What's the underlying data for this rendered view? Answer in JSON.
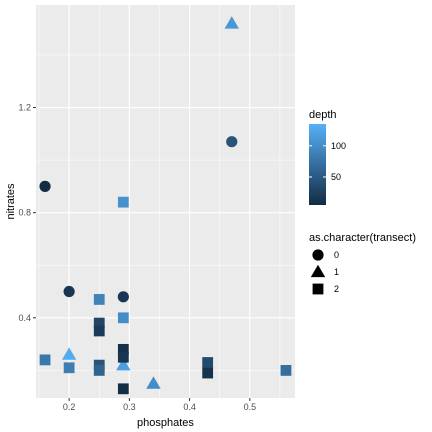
{
  "chart_data": {
    "type": "scatter",
    "xlabel": "phosphates",
    "ylabel": "nitrates",
    "xlim": [
      0.145,
      0.575
    ],
    "ylim": [
      0.095,
      1.59
    ],
    "x_ticks": [
      0.2,
      0.3,
      0.4,
      0.5
    ],
    "x_tick_labels": [
      "0.2",
      "0.3",
      "0.4",
      "0.5"
    ],
    "y_ticks": [
      0.4,
      0.8,
      1.2
    ],
    "y_tick_labels": [
      "0.4",
      "0.8",
      "1.2"
    ],
    "grid": true,
    "panel_background": "#ebebeb",
    "grid_color": "#ffffff",
    "legend": {
      "position": "right",
      "color": {
        "title": "depth",
        "range": [
          5,
          135
        ],
        "ticks": [
          50,
          100
        ],
        "tick_labels": [
          "50",
          "100"
        ],
        "low_color": "#132B43",
        "high_color": "#56B1F7"
      },
      "shape": {
        "title": "as.character(transect)",
        "entries": [
          {
            "label": "0",
            "shape": "circle"
          },
          {
            "label": "1",
            "shape": "triangle"
          },
          {
            "label": "2",
            "shape": "square"
          }
        ]
      }
    },
    "points": [
      {
        "x": 0.16,
        "y": 0.9,
        "transect": "0",
        "depth": 5
      },
      {
        "x": 0.2,
        "y": 0.5,
        "transect": "0",
        "depth": 15
      },
      {
        "x": 0.29,
        "y": 0.48,
        "transect": "0",
        "depth": 18
      },
      {
        "x": 0.47,
        "y": 1.07,
        "transect": "0",
        "depth": 45
      },
      {
        "x": 0.2,
        "y": 0.26,
        "transect": "1",
        "depth": 130
      },
      {
        "x": 0.29,
        "y": 0.22,
        "transect": "1",
        "depth": 118
      },
      {
        "x": 0.34,
        "y": 0.15,
        "transect": "1",
        "depth": 100
      },
      {
        "x": 0.47,
        "y": 1.52,
        "transect": "1",
        "depth": 110
      },
      {
        "x": 0.16,
        "y": 0.24,
        "transect": "2",
        "depth": 80
      },
      {
        "x": 0.2,
        "y": 0.21,
        "transect": "2",
        "depth": 85
      },
      {
        "x": 0.25,
        "y": 0.47,
        "transect": "2",
        "depth": 90
      },
      {
        "x": 0.25,
        "y": 0.38,
        "transect": "2",
        "depth": 30
      },
      {
        "x": 0.25,
        "y": 0.35,
        "transect": "2",
        "depth": 20
      },
      {
        "x": 0.25,
        "y": 0.22,
        "transect": "2",
        "depth": 45
      },
      {
        "x": 0.25,
        "y": 0.2,
        "transect": "2",
        "depth": 60
      },
      {
        "x": 0.29,
        "y": 0.84,
        "transect": "2",
        "depth": 105
      },
      {
        "x": 0.29,
        "y": 0.4,
        "transect": "2",
        "depth": 100
      },
      {
        "x": 0.29,
        "y": 0.28,
        "transect": "2",
        "depth": 10
      },
      {
        "x": 0.29,
        "y": 0.25,
        "transect": "2",
        "depth": 15
      },
      {
        "x": 0.29,
        "y": 0.13,
        "transect": "2",
        "depth": 8
      },
      {
        "x": 0.43,
        "y": 0.23,
        "transect": "2",
        "depth": 35
      },
      {
        "x": 0.43,
        "y": 0.19,
        "transect": "2",
        "depth": 12
      },
      {
        "x": 0.56,
        "y": 0.2,
        "transect": "2",
        "depth": 70
      }
    ]
  }
}
